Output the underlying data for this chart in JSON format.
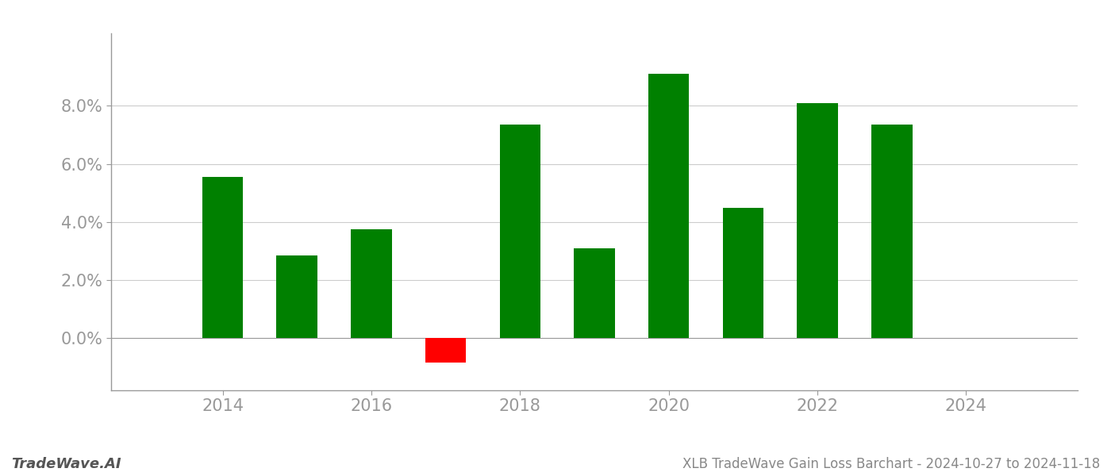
{
  "years": [
    2014,
    2015,
    2016,
    2017,
    2018,
    2019,
    2020,
    2021,
    2022,
    2023
  ],
  "values": [
    0.0555,
    0.0285,
    0.0375,
    -0.0085,
    0.0735,
    0.031,
    0.091,
    0.045,
    0.081,
    0.0735
  ],
  "bar_colors_positive": "#008000",
  "bar_colors_negative": "#ff0000",
  "title": "XLB TradeWave Gain Loss Barchart - 2024-10-27 to 2024-11-18",
  "watermark": "TradeWave.AI",
  "background_color": "#ffffff",
  "grid_color": "#cccccc",
  "xlim": [
    2012.5,
    2025.5
  ],
  "ylim": [
    -0.018,
    0.105
  ],
  "xticks": [
    2014,
    2016,
    2018,
    2020,
    2022,
    2024
  ],
  "yticks": [
    0.0,
    0.02,
    0.04,
    0.06,
    0.08
  ],
  "bar_width": 0.55,
  "title_fontsize": 12,
  "tick_fontsize": 15,
  "watermark_fontsize": 13,
  "spine_color": "#999999",
  "tick_color": "#999999"
}
